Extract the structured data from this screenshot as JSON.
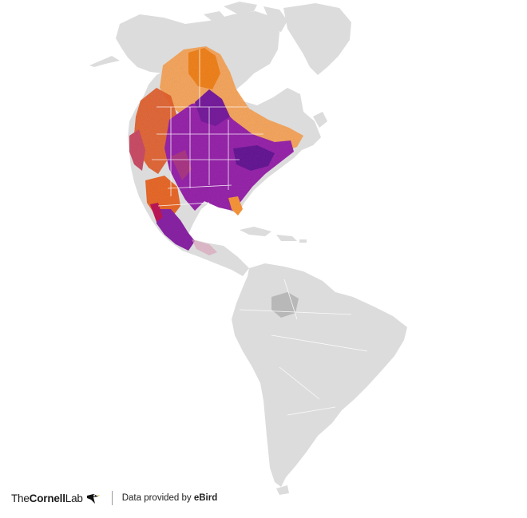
{
  "map": {
    "colors": {
      "land": "#dcdcdc",
      "border": "#ffffff",
      "high": "#7b1fa2",
      "mid": "#c2185b",
      "low": "#f57c00",
      "edge": "#ffb74d"
    }
  },
  "footer": {
    "logo_prefix": "The",
    "logo_bold": "Cornell",
    "logo_suffix": "Lab",
    "credit_prefix": "Data provided by ",
    "credit_brand": "eBird"
  }
}
